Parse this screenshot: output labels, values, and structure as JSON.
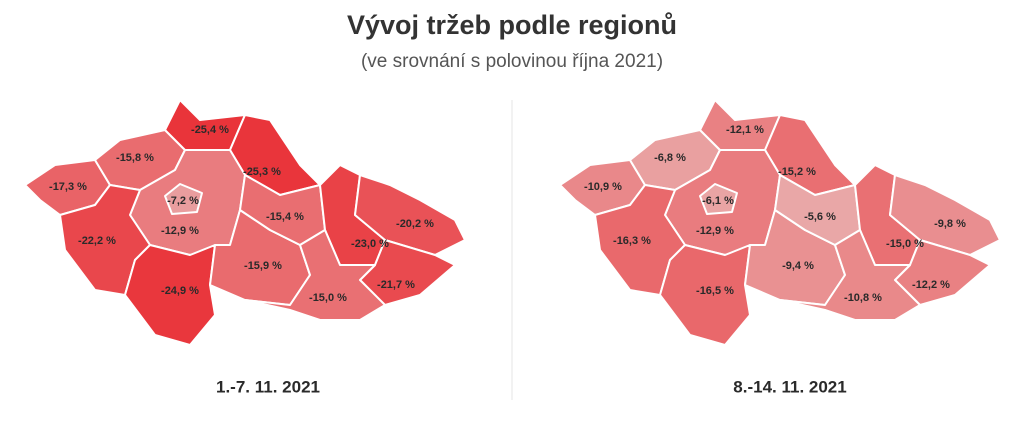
{
  "title": "Vývoj tržeb podle regionů",
  "subtitle": "(ve srovnání s polovinou října 2021)",
  "maps": [
    {
      "period": "1.-7. 11. 2021",
      "regions": [
        {
          "value": -17.3,
          "label": "-17,3 %"
        },
        {
          "value": -15.8,
          "label": "-15,8 %"
        },
        {
          "value": -25.4,
          "label": "-25,4 %"
        },
        {
          "value": -25.3,
          "label": "-25,3 %"
        },
        {
          "value": -12.9,
          "label": "-12,9 %"
        },
        {
          "value": -7.2,
          "label": "-7,2 %"
        },
        {
          "value": -22.2,
          "label": "-22,2 %"
        },
        {
          "value": -24.9,
          "label": "-24,9 %"
        },
        {
          "value": -15.9,
          "label": "-15,9 %"
        },
        {
          "value": -15.4,
          "label": "-15,4 %"
        },
        {
          "value": -23.0,
          "label": "-23,0 %"
        },
        {
          "value": -20.2,
          "label": "-20,2 %"
        },
        {
          "value": -21.7,
          "label": "-21,7 %"
        },
        {
          "value": -15.0,
          "label": "-15,0 %"
        }
      ]
    },
    {
      "period": "8.-14. 11. 2021",
      "regions": [
        {
          "value": -10.9,
          "label": "-10,9 %"
        },
        {
          "value": -6.8,
          "label": "-6,8 %"
        },
        {
          "value": -12.1,
          "label": "-12,1 %"
        },
        {
          "value": -15.2,
          "label": "-15,2 %"
        },
        {
          "value": -12.9,
          "label": "-12,9 %"
        },
        {
          "value": -6.1,
          "label": "-6,1 %"
        },
        {
          "value": -16.3,
          "label": "-16,3 %"
        },
        {
          "value": -16.5,
          "label": "-16,5 %"
        },
        {
          "value": -9.4,
          "label": "-9,4 %"
        },
        {
          "value": -5.6,
          "label": "-5,6 %"
        },
        {
          "value": -15.0,
          "label": "-15,0 %"
        },
        {
          "value": -9.8,
          "label": "-9,8 %"
        },
        {
          "value": -12.2,
          "label": "-12,2 %"
        },
        {
          "value": -10.8,
          "label": "-10,8 %"
        }
      ]
    }
  ]
}
